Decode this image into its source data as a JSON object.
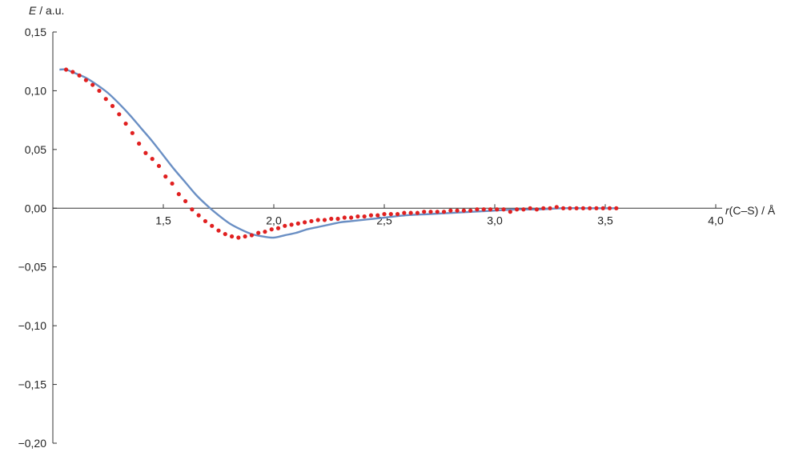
{
  "chart_data": {
    "type": "scatter",
    "title": "",
    "ylabel": {
      "var": "E",
      "unit": " / a.u."
    },
    "xlabel": {
      "var": "r",
      "unit": "(C–S) / Å"
    },
    "xlim": [
      1.0,
      4.0
    ],
    "ylim": [
      -0.2,
      0.15
    ],
    "x_ticks": [
      {
        "value": 1.5,
        "label": "1,5"
      },
      {
        "value": 2.0,
        "label": "2,0"
      },
      {
        "value": 2.5,
        "label": "2,5"
      },
      {
        "value": 3.0,
        "label": "3,0"
      },
      {
        "value": 3.5,
        "label": "3,5"
      },
      {
        "value": 4.0,
        "label": "4,0"
      }
    ],
    "y_ticks": [
      {
        "value": 0.15,
        "label": "0,15"
      },
      {
        "value": 0.1,
        "label": "0,10"
      },
      {
        "value": 0.05,
        "label": "0,05"
      },
      {
        "value": 0.0,
        "label": "0,00"
      },
      {
        "value": -0.05,
        "label": "−0,05"
      },
      {
        "value": -0.1,
        "label": "−0,10"
      },
      {
        "value": -0.15,
        "label": "−0,15"
      },
      {
        "value": -0.2,
        "label": "−0,20"
      }
    ],
    "grid": false,
    "colors": {
      "points": "#e02020",
      "curve": "#6a8fc4",
      "axis": "#333333"
    },
    "series": [
      {
        "kind": "points",
        "x": [
          1.06,
          1.09,
          1.12,
          1.15,
          1.18,
          1.21,
          1.24,
          1.27,
          1.3,
          1.33,
          1.36,
          1.39,
          1.42,
          1.45,
          1.48,
          1.51,
          1.54,
          1.57,
          1.6,
          1.63,
          1.66,
          1.69,
          1.72,
          1.75,
          1.78,
          1.81,
          1.84,
          1.87,
          1.9,
          1.93,
          1.96,
          1.99,
          2.02,
          2.05,
          2.08,
          2.11,
          2.14,
          2.17,
          2.2,
          2.23,
          2.26,
          2.29,
          2.32,
          2.35,
          2.38,
          2.41,
          2.44,
          2.47,
          2.5,
          2.53,
          2.56,
          2.59,
          2.62,
          2.65,
          2.68,
          2.71,
          2.74,
          2.77,
          2.8,
          2.83,
          2.86,
          2.89,
          2.92,
          2.95,
          2.98,
          3.01,
          3.04,
          3.07,
          3.1,
          3.13,
          3.16,
          3.19,
          3.22,
          3.25,
          3.28,
          3.31,
          3.34,
          3.37,
          3.4,
          3.43,
          3.46,
          3.49,
          3.52,
          3.55
        ],
        "y": [
          0.118,
          0.116,
          0.113,
          0.109,
          0.105,
          0.1,
          0.093,
          0.087,
          0.08,
          0.072,
          0.064,
          0.055,
          0.047,
          0.042,
          0.036,
          0.027,
          0.021,
          0.012,
          0.006,
          -0.001,
          -0.006,
          -0.011,
          -0.015,
          -0.019,
          -0.022,
          -0.024,
          -0.025,
          -0.024,
          -0.023,
          -0.021,
          -0.02,
          -0.018,
          -0.017,
          -0.015,
          -0.014,
          -0.013,
          -0.012,
          -0.011,
          -0.01,
          -0.01,
          -0.009,
          -0.009,
          -0.008,
          -0.008,
          -0.007,
          -0.007,
          -0.006,
          -0.006,
          -0.005,
          -0.005,
          -0.005,
          -0.004,
          -0.004,
          -0.004,
          -0.003,
          -0.003,
          -0.003,
          -0.003,
          -0.002,
          -0.002,
          -0.002,
          -0.002,
          -0.001,
          -0.001,
          -0.001,
          -0.001,
          -0.001,
          -0.003,
          -0.001,
          -0.001,
          0.0,
          -0.001,
          0.0,
          0.0,
          0.001,
          0.0,
          0.0,
          0.0,
          0.0,
          0.0,
          0.0,
          0.0,
          0.0,
          0.0
        ]
      },
      {
        "kind": "curve",
        "x": [
          1.03,
          1.06,
          1.1,
          1.15,
          1.2,
          1.25,
          1.3,
          1.35,
          1.4,
          1.45,
          1.5,
          1.55,
          1.6,
          1.65,
          1.7,
          1.75,
          1.8,
          1.85,
          1.9,
          1.95,
          2.0,
          2.05,
          2.1,
          2.15,
          2.2,
          2.25,
          2.3,
          2.35,
          2.4,
          2.45,
          2.5,
          2.6,
          2.7,
          2.8,
          2.9,
          3.0,
          3.1,
          3.2,
          3.3,
          3.4,
          3.5,
          3.56
        ],
        "y": [
          0.118,
          0.118,
          0.115,
          0.111,
          0.105,
          0.098,
          0.089,
          0.079,
          0.068,
          0.057,
          0.045,
          0.033,
          0.022,
          0.011,
          0.002,
          -0.006,
          -0.013,
          -0.018,
          -0.022,
          -0.024,
          -0.025,
          -0.023,
          -0.021,
          -0.018,
          -0.016,
          -0.014,
          -0.012,
          -0.011,
          -0.01,
          -0.009,
          -0.008,
          -0.006,
          -0.005,
          -0.004,
          -0.003,
          -0.002,
          -0.001,
          -0.001,
          0.0,
          0.0,
          0.0,
          0.0
        ]
      }
    ]
  }
}
